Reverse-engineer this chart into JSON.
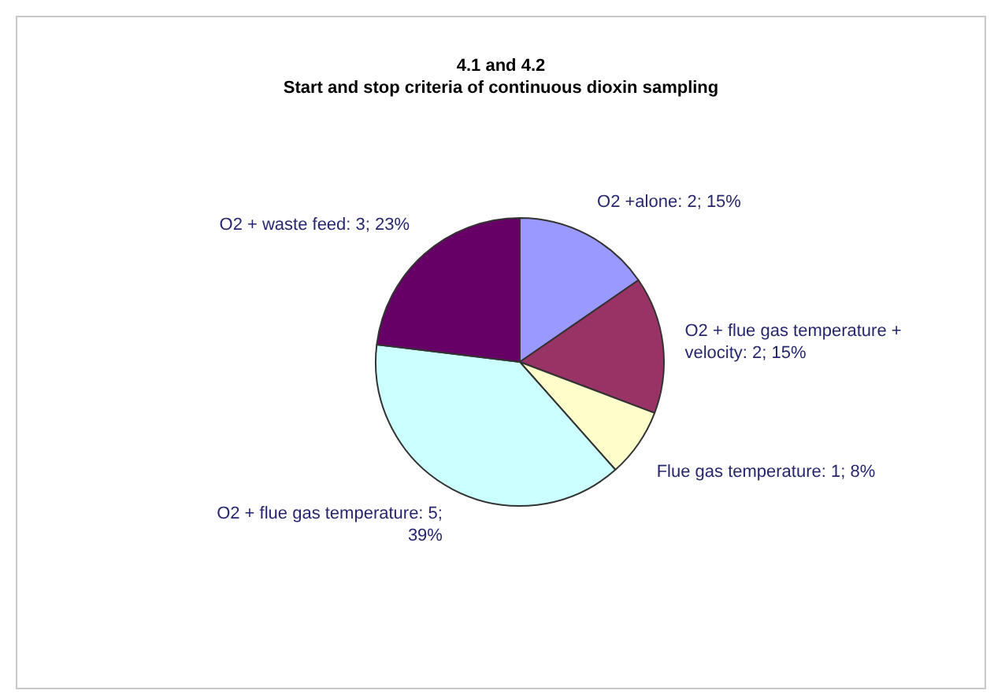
{
  "chart_data": {
    "type": "pie",
    "title": "4.1 and 4.2",
    "subtitle": "Start and stop criteria of continuous dioxin sampling",
    "categories": [
      "O2 +alone",
      "O2 + flue gas temperature + velocity",
      "Flue gas temperature",
      "O2 + flue gas temperature",
      "O2 + waste feed"
    ],
    "values": [
      2,
      2,
      1,
      5,
      3
    ],
    "value_labels": [
      "2; 15%",
      "2; 15%",
      "1; 8%",
      "5; 39%",
      "3; 23%"
    ],
    "colors": [
      "#9999ff",
      "#993366",
      "#ffffcc",
      "#ccffff",
      "#660066"
    ],
    "legend": false
  }
}
